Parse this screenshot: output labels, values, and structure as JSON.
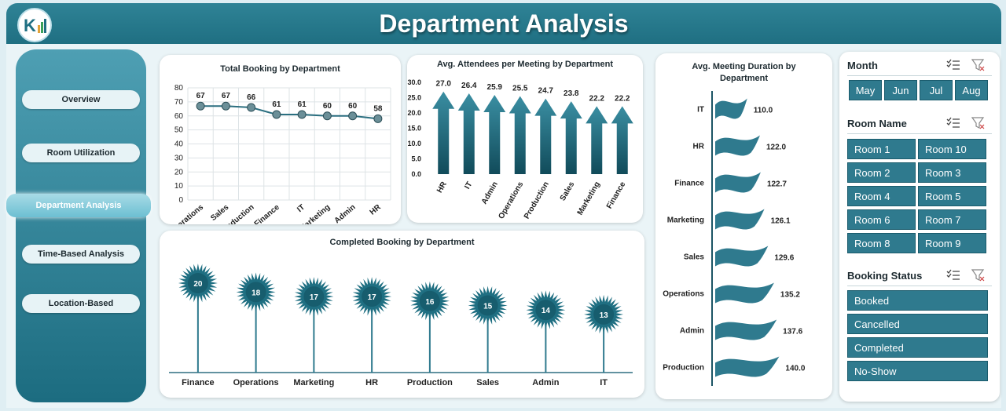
{
  "header": {
    "title": "Department Analysis"
  },
  "sidebar": {
    "items": [
      {
        "label": "Overview"
      },
      {
        "label": "Room Utilization"
      },
      {
        "label": "Department Analysis"
      },
      {
        "label": "Time-Based Analysis"
      },
      {
        "label": "Location-Based"
      }
    ]
  },
  "filters": {
    "month": {
      "title": "Month",
      "options": [
        "May",
        "Jun",
        "Jul",
        "Aug"
      ]
    },
    "room": {
      "title": "Room Name",
      "options": [
        "Room 1",
        "Room 10",
        "Room 2",
        "Room 3",
        "Room 4",
        "Room 5",
        "Room 6",
        "Room 7",
        "Room 8",
        "Room 9"
      ]
    },
    "status": {
      "title": "Booking Status",
      "options": [
        "Booked",
        "Cancelled",
        "Completed",
        "No-Show"
      ]
    }
  },
  "chart_data": [
    {
      "type": "line",
      "title": "Total Booking by Department",
      "categories": [
        "Operations",
        "Sales",
        "Production",
        "Finance",
        "IT",
        "Marketing",
        "Admin",
        "HR"
      ],
      "values": [
        67,
        67,
        66,
        61,
        61,
        60,
        60,
        58
      ],
      "ylim": [
        0,
        80
      ],
      "yticks": [
        "0",
        "10",
        "20",
        "30",
        "40",
        "50",
        "60",
        "70",
        "80"
      ]
    },
    {
      "type": "bar",
      "title": "Avg. Attendees per Meeting by Department",
      "categories": [
        "HR",
        "IT",
        "Admin",
        "Operations",
        "Production",
        "Sales",
        "Marketing",
        "Finance"
      ],
      "values": [
        27.0,
        26.4,
        25.9,
        25.5,
        24.7,
        23.8,
        22.2,
        22.2
      ],
      "labels": [
        "27.0",
        "26.4",
        "25.9",
        "25.5",
        "24.7",
        "23.8",
        "22.2",
        "22.2"
      ],
      "ylim": [
        0,
        30
      ],
      "yticks": [
        "0.0",
        "5.0",
        "10.0",
        "15.0",
        "20.0",
        "25.0",
        "30.0"
      ]
    },
    {
      "type": "bar",
      "title": "Avg. Meeting Duration by Department",
      "categories": [
        "IT",
        "HR",
        "Finance",
        "Marketing",
        "Sales",
        "Operations",
        "Admin",
        "Production"
      ],
      "values": [
        110.0,
        122.0,
        122.7,
        126.1,
        129.6,
        135.2,
        137.6,
        140.0
      ],
      "labels": [
        "110.0",
        "122.0",
        "122.7",
        "126.1",
        "129.6",
        "135.2",
        "137.6",
        "140.0"
      ]
    },
    {
      "type": "bar",
      "title": "Completed Booking by Department",
      "categories": [
        "Finance",
        "Operations",
        "Marketing",
        "HR",
        "Production",
        "Sales",
        "Admin",
        "IT"
      ],
      "values": [
        20,
        18,
        17,
        17,
        16,
        15,
        14,
        13
      ]
    }
  ]
}
